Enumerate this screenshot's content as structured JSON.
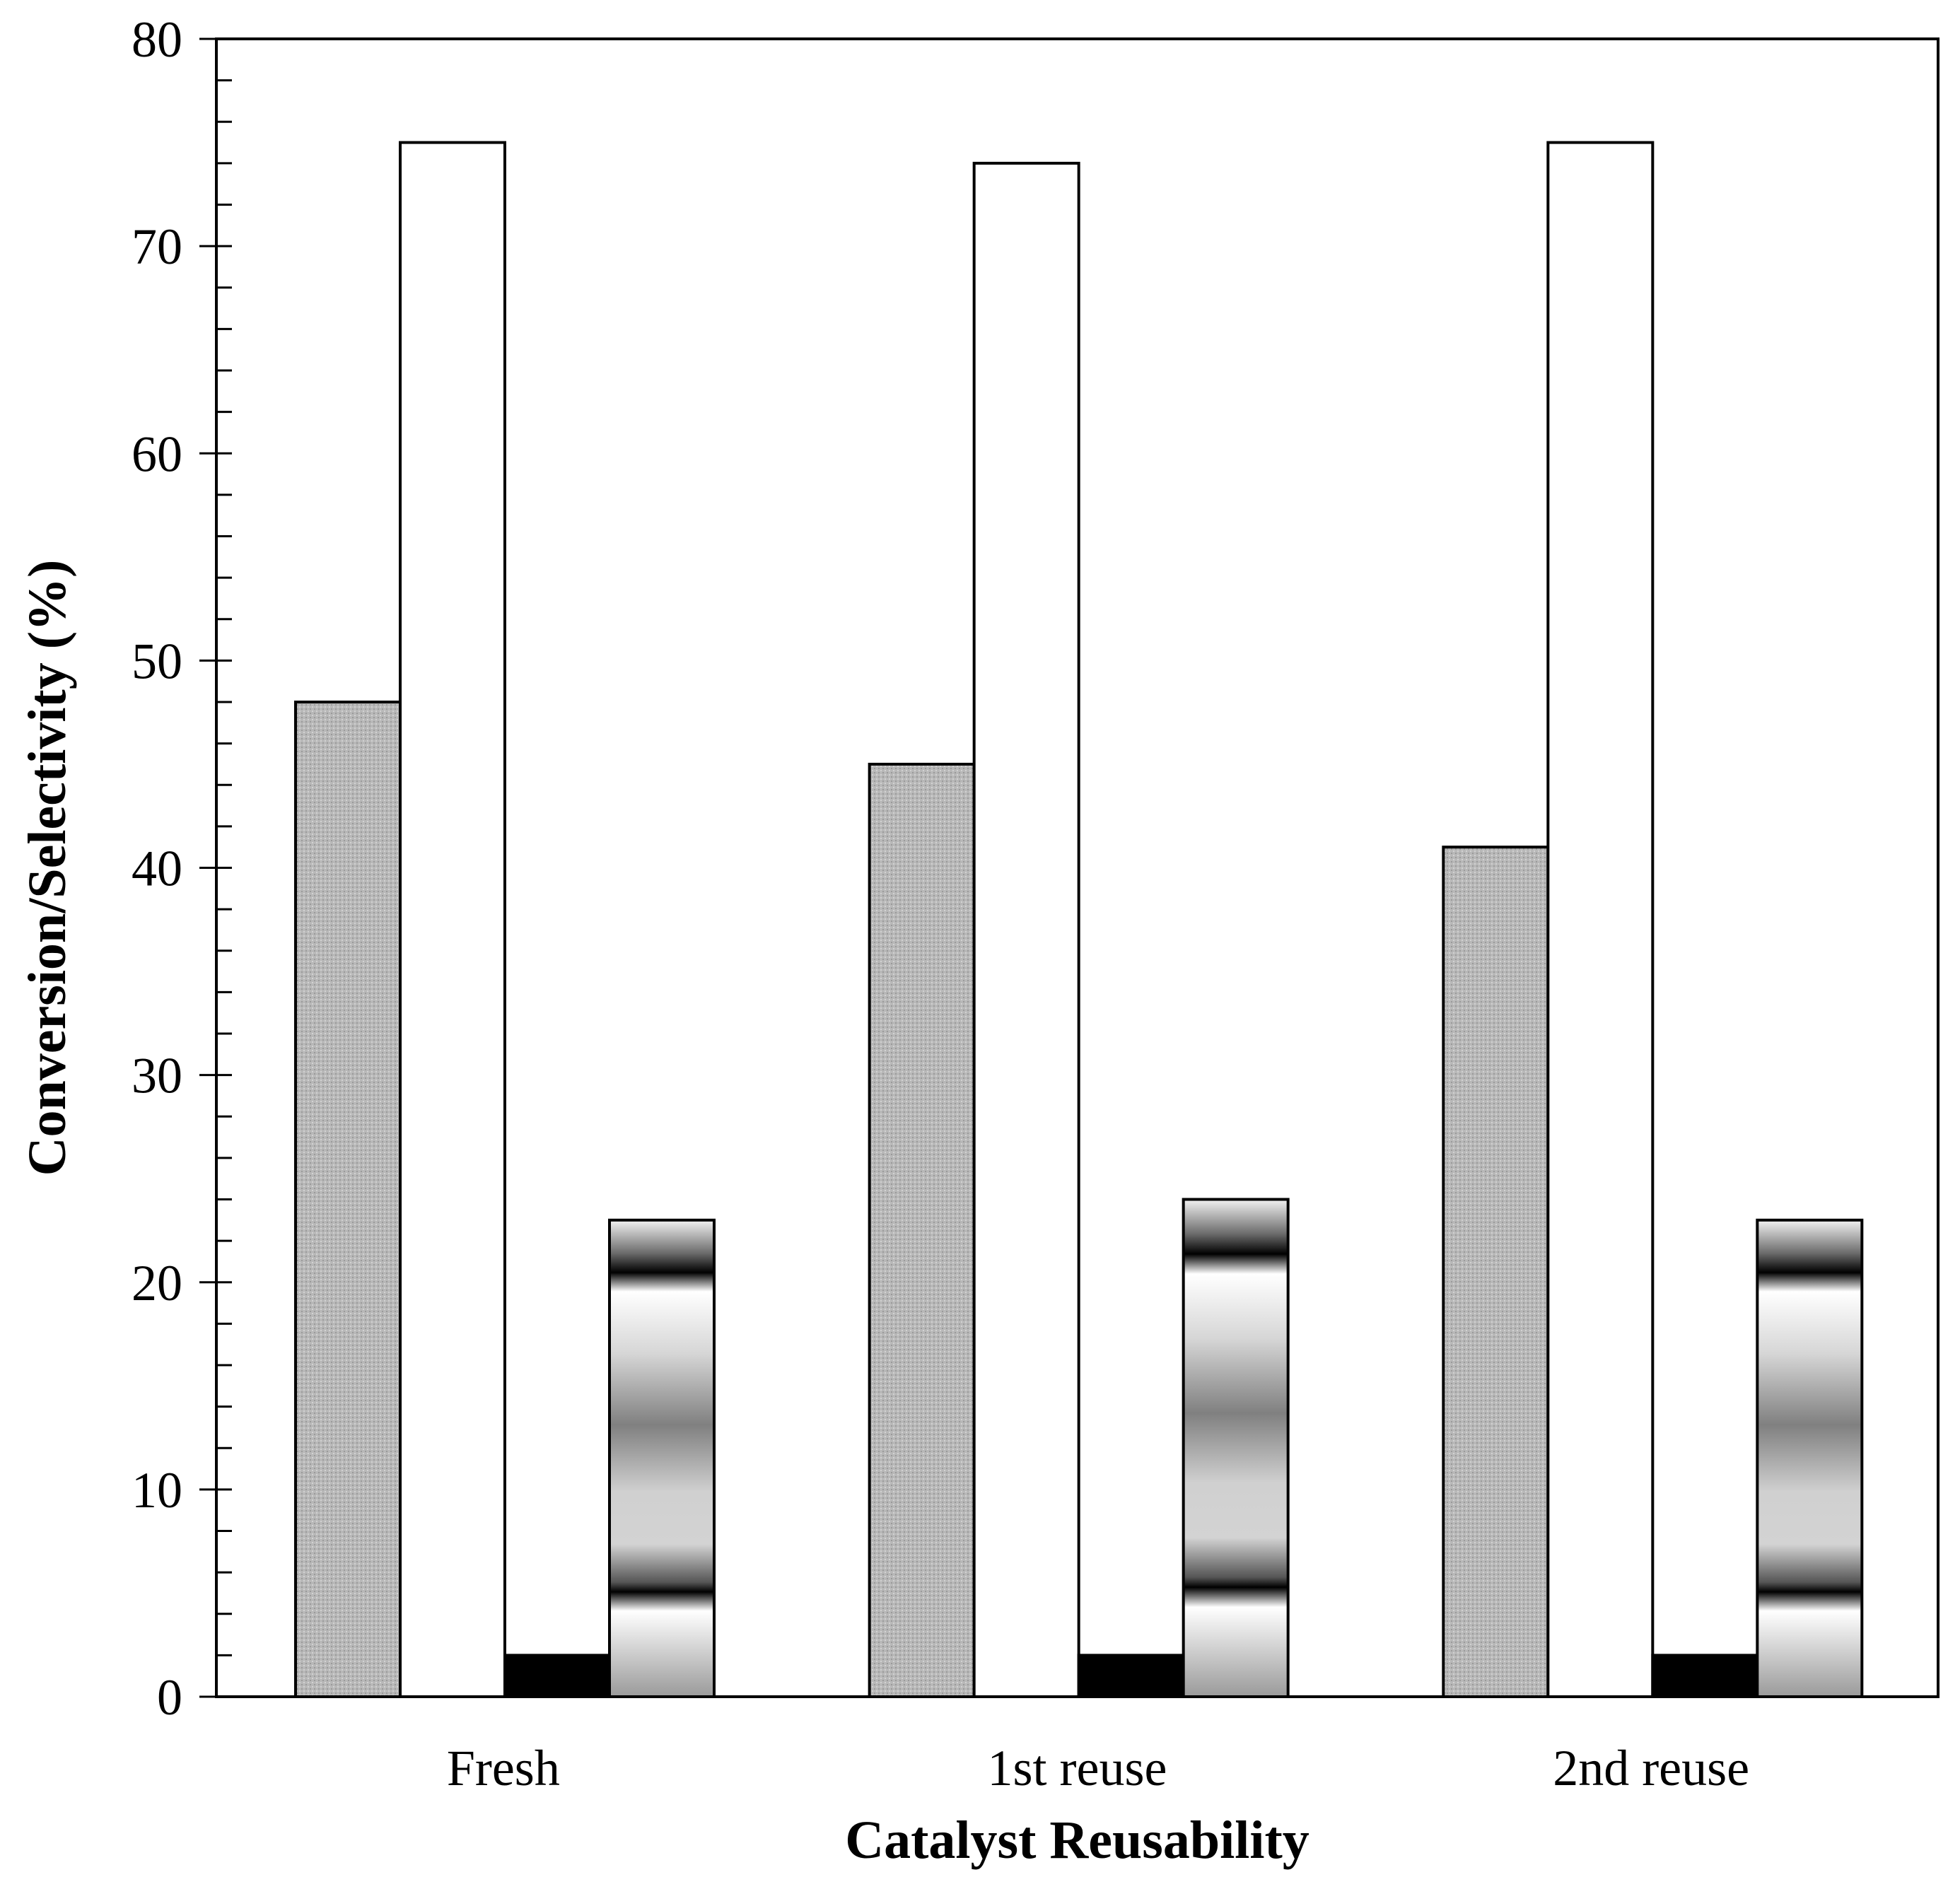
{
  "chart_data": {
    "type": "bar",
    "title": "",
    "xlabel": "Catalyst Reusability",
    "ylabel": "Conversion/Selectivity (%)",
    "ylim": [
      0,
      80
    ],
    "y_major_ticks": [
      0,
      10,
      20,
      30,
      40,
      50,
      60,
      70,
      80
    ],
    "y_tick_labels": [
      "0",
      "10",
      "20",
      "30",
      "40",
      "50",
      "60",
      "70",
      "80"
    ],
    "y_minor_step": 2,
    "grid": false,
    "legend": "none",
    "categories": [
      "Fresh",
      "1st reuse",
      "2nd reuse"
    ],
    "series": [
      {
        "name": "series-1",
        "fill": "dotted-gray",
        "values": [
          48,
          45,
          41
        ]
      },
      {
        "name": "series-2",
        "fill": "white",
        "values": [
          75,
          74,
          75
        ]
      },
      {
        "name": "series-3",
        "fill": "black",
        "values": [
          2,
          2,
          2
        ]
      },
      {
        "name": "series-4",
        "fill": "banded-gradient",
        "values": [
          23,
          24,
          23
        ]
      }
    ],
    "colors": {
      "gray": "#b5b5b5",
      "white": "#ffffff",
      "black": "#000000",
      "axis": "#000000"
    }
  }
}
